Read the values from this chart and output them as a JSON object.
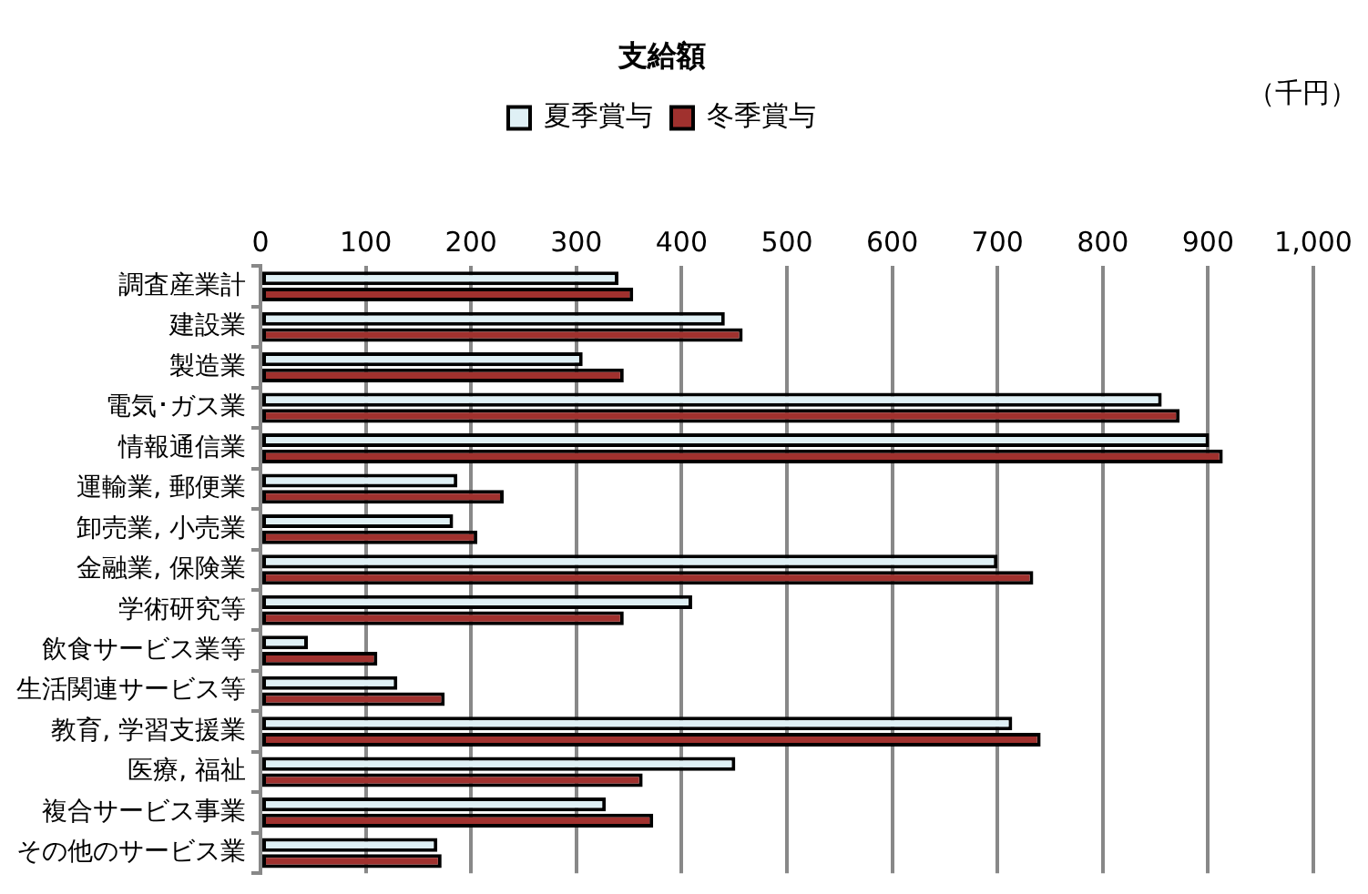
{
  "chart_data": {
    "type": "bar",
    "orientation": "horizontal",
    "title": "支給額",
    "annotations": [
      "（千円）"
    ],
    "categories": [
      "調査産業計",
      "建設業",
      "製造業",
      "電気･ガス業",
      "情報通信業",
      "運輸業, 郵便業",
      "卸売業, 小売業",
      "金融業, 保険業",
      "学術研究等",
      "飲食サービス業等",
      "生活関連サービス等",
      "教育, 学習支援業",
      "医療, 福祉",
      "複合サービス事業",
      "その他のサービス業"
    ],
    "series": [
      {
        "name": "夏季賞与",
        "color": "#dff0f5",
        "values": [
          340,
          441,
          306,
          856,
          901,
          187,
          183,
          700,
          410,
          45,
          130,
          714,
          451,
          328,
          168
        ]
      },
      {
        "name": "冬季賞与",
        "color": "#a0312e",
        "values": [
          354,
          458,
          345,
          873,
          914,
          231,
          206,
          734,
          345,
          111,
          175,
          741,
          363,
          373,
          172
        ]
      }
    ],
    "xlim": [
      0,
      1000
    ],
    "xticks": [
      0,
      100,
      200,
      300,
      400,
      500,
      600,
      700,
      800,
      900,
      {
        "value": 1000,
        "label": "1,000"
      }
    ],
    "grid": "x",
    "legend": "top"
  }
}
